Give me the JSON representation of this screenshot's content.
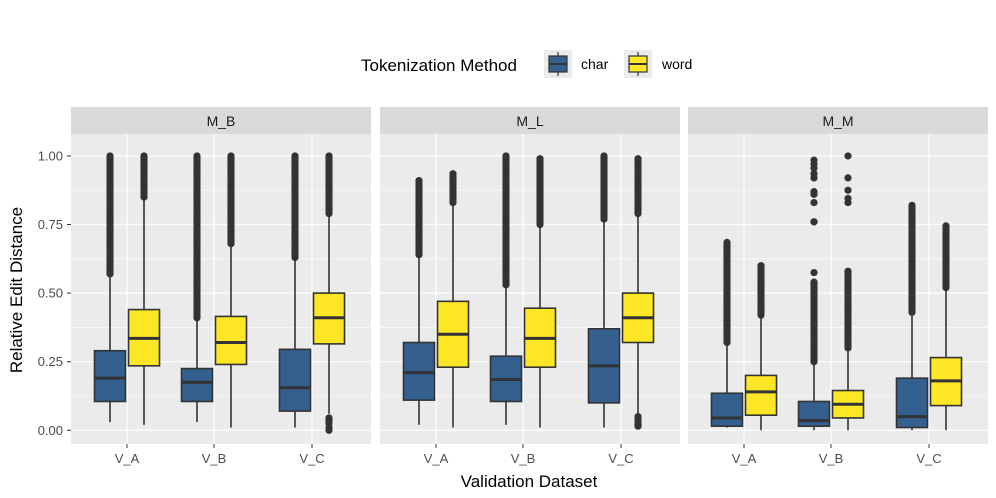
{
  "chart_data": {
    "type": "boxplot",
    "title": "",
    "xlabel": "Validation Dataset",
    "ylabel": "Relative Edit Distance",
    "ylim": [
      -0.05,
      1.08
    ],
    "y_ticks": [
      0,
      0.25,
      0.5,
      0.75,
      1
    ],
    "y_tick_labels": [
      "0.00",
      "0.25",
      "0.50",
      "0.75",
      "1.00"
    ],
    "categories": [
      "V_A",
      "V_B",
      "V_C"
    ],
    "facets": [
      "M_B",
      "M_L",
      "M_M"
    ],
    "legend": {
      "title": "Tokenization Method",
      "position": "top",
      "entries": [
        {
          "name": "char",
          "color": "#34608f"
        },
        {
          "name": "word",
          "color": "#fde725"
        }
      ]
    },
    "series": [
      {
        "facet": "M_B",
        "boxes": [
          {
            "category": "V_A",
            "group": "char",
            "lower_whisker": 0.03,
            "q1": 0.105,
            "median": 0.19,
            "q3": 0.29,
            "upper_whisker": 0.56,
            "outliers_from": 0.57,
            "outliers_to": 1.0
          },
          {
            "category": "V_A",
            "group": "word",
            "lower_whisker": 0.02,
            "q1": 0.235,
            "median": 0.335,
            "q3": 0.44,
            "upper_whisker": 0.84,
            "outliers_from": 0.85,
            "outliers_to": 1.0
          },
          {
            "category": "V_B",
            "group": "char",
            "lower_whisker": 0.03,
            "q1": 0.105,
            "median": 0.175,
            "q3": 0.225,
            "upper_whisker": 0.4,
            "outliers_from": 0.41,
            "outliers_to": 1.0
          },
          {
            "category": "V_B",
            "group": "word",
            "lower_whisker": 0.01,
            "q1": 0.24,
            "median": 0.32,
            "q3": 0.415,
            "upper_whisker": 0.67,
            "outliers_from": 0.68,
            "outliers_to": 1.0
          },
          {
            "category": "V_C",
            "group": "char",
            "lower_whisker": 0.01,
            "q1": 0.07,
            "median": 0.155,
            "q3": 0.295,
            "upper_whisker": 0.62,
            "outliers_from": 0.63,
            "outliers_to": 1.0
          },
          {
            "category": "V_C",
            "group": "word",
            "lower_whisker": 0.06,
            "q1": 0.315,
            "median": 0.41,
            "q3": 0.5,
            "upper_whisker": 0.78,
            "outliers_from": 0.79,
            "outliers_to": 1.0,
            "low_outliers": [
              0.045,
              0.035,
              0.025,
              0.01,
              0.0
            ]
          }
        ]
      },
      {
        "facet": "M_L",
        "boxes": [
          {
            "category": "V_A",
            "group": "char",
            "lower_whisker": 0.02,
            "q1": 0.11,
            "median": 0.21,
            "q3": 0.32,
            "upper_whisker": 0.63,
            "outliers_from": 0.64,
            "outliers_to": 0.91
          },
          {
            "category": "V_A",
            "group": "word",
            "lower_whisker": 0.01,
            "q1": 0.23,
            "median": 0.35,
            "q3": 0.47,
            "upper_whisker": 0.82,
            "outliers_from": 0.83,
            "outliers_to": 0.935
          },
          {
            "category": "V_B",
            "group": "char",
            "lower_whisker": 0.02,
            "q1": 0.105,
            "median": 0.185,
            "q3": 0.27,
            "upper_whisker": 0.52,
            "outliers_from": 0.53,
            "outliers_to": 1.0
          },
          {
            "category": "V_B",
            "group": "word",
            "lower_whisker": 0.01,
            "q1": 0.23,
            "median": 0.335,
            "q3": 0.445,
            "upper_whisker": 0.74,
            "outliers_from": 0.75,
            "outliers_to": 0.99
          },
          {
            "category": "V_C",
            "group": "char",
            "lower_whisker": 0.01,
            "q1": 0.1,
            "median": 0.235,
            "q3": 0.37,
            "upper_whisker": 0.76,
            "outliers_from": 0.77,
            "outliers_to": 1.0
          },
          {
            "category": "V_C",
            "group": "word",
            "lower_whisker": 0.06,
            "q1": 0.32,
            "median": 0.41,
            "q3": 0.5,
            "upper_whisker": 0.78,
            "outliers_from": 0.79,
            "outliers_to": 0.99,
            "low_outliers": [
              0.05,
              0.04,
              0.03,
              0.02,
              0.015
            ]
          }
        ]
      },
      {
        "facet": "M_M",
        "boxes": [
          {
            "category": "V_A",
            "group": "char",
            "lower_whisker": 0.01,
            "q1": 0.015,
            "median": 0.045,
            "q3": 0.135,
            "upper_whisker": 0.31,
            "outliers_from": 0.32,
            "outliers_to": 0.685
          },
          {
            "category": "V_A",
            "group": "word",
            "lower_whisker": 0.0,
            "q1": 0.055,
            "median": 0.14,
            "q3": 0.2,
            "upper_whisker": 0.41,
            "outliers_from": 0.42,
            "outliers_to": 0.6
          },
          {
            "category": "V_B",
            "group": "char",
            "lower_whisker": 0.0,
            "q1": 0.015,
            "median": 0.035,
            "q3": 0.105,
            "upper_whisker": 0.24,
            "outliers_from": 0.25,
            "outliers_to": 0.54,
            "extra_outliers": [
              0.575,
              0.76,
              0.76,
              0.83,
              0.86,
              0.87,
              0.92,
              0.935,
              0.955,
              0.97,
              0.985
            ]
          },
          {
            "category": "V_B",
            "group": "word",
            "lower_whisker": 0.0,
            "q1": 0.045,
            "median": 0.095,
            "q3": 0.145,
            "upper_whisker": 0.29,
            "outliers_from": 0.3,
            "outliers_to": 0.58,
            "extra_outliers": [
              0.83,
              0.845,
              0.875,
              0.92,
              1.0
            ]
          },
          {
            "category": "V_C",
            "group": "char",
            "lower_whisker": 0.0,
            "q1": 0.01,
            "median": 0.05,
            "q3": 0.19,
            "upper_whisker": 0.42,
            "outliers_from": 0.43,
            "outliers_to": 0.82
          },
          {
            "category": "V_C",
            "group": "word",
            "lower_whisker": 0.0,
            "q1": 0.09,
            "median": 0.18,
            "q3": 0.265,
            "upper_whisker": 0.51,
            "outliers_from": 0.52,
            "outliers_to": 0.745
          }
        ]
      }
    ]
  }
}
